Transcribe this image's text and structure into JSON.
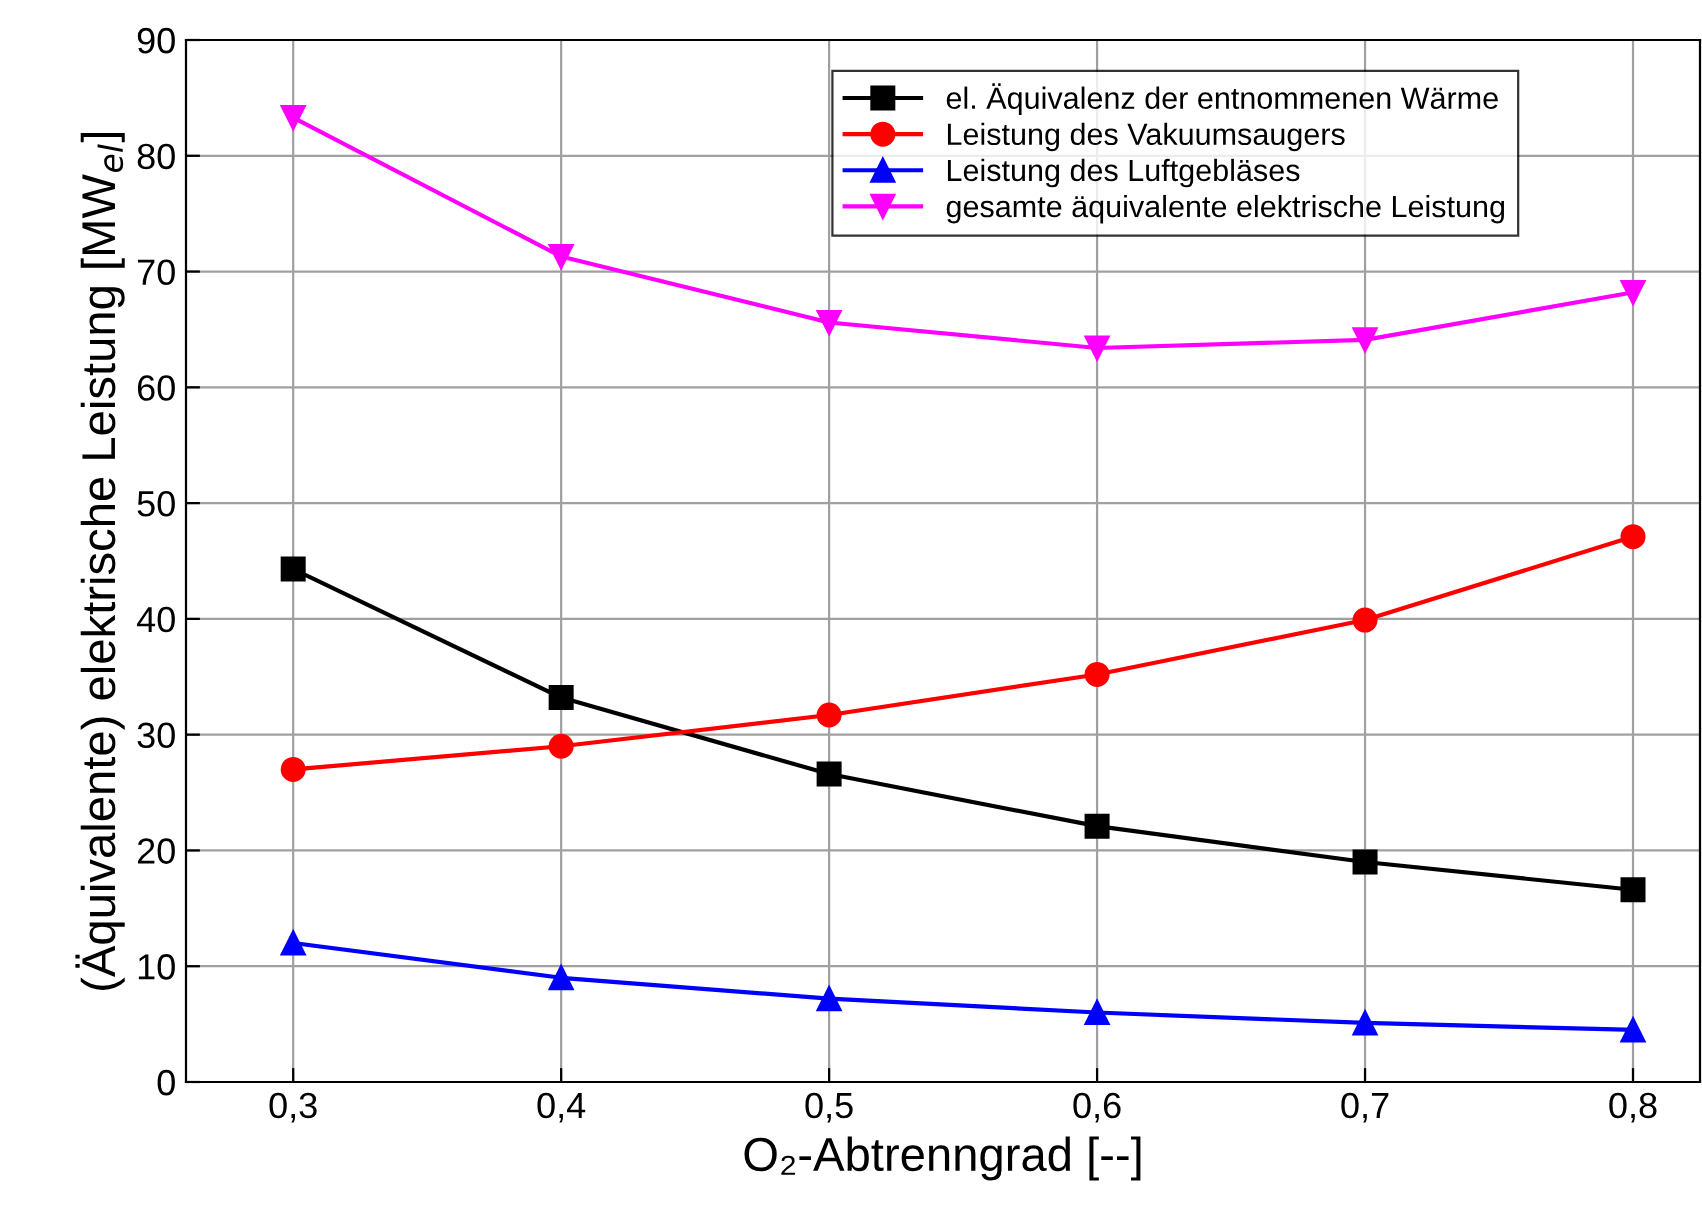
{
  "chart_data": {
    "type": "line",
    "xlabel": "O₂-Abtrenngrad [--]",
    "ylabel": "(Äquivalente) elektrische Leistung [MW$_{el}$]",
    "x": [
      0.3,
      0.4,
      0.5,
      0.6,
      0.7,
      0.8
    ],
    "series": [
      {
        "name": "el. Äquivalenz der entnommenen Wärme",
        "color": "#000000",
        "marker": "square",
        "values": [
          44.3,
          33.2,
          26.6,
          22.1,
          19.0,
          16.6
        ]
      },
      {
        "name": "Leistung des Vakuumsaugers",
        "color": "#ff0000",
        "marker": "circle",
        "values": [
          27.0,
          29.0,
          31.7,
          35.2,
          39.9,
          47.1
        ]
      },
      {
        "name": "Leistung des Luftgebläses",
        "color": "#0000ff",
        "marker": "triangle",
        "values": [
          12.0,
          9.0,
          7.2,
          6.0,
          5.1,
          4.5
        ]
      },
      {
        "name": "gesamte äquivalente elektrische Leistung",
        "color": "#ff00ff",
        "marker": "triangle_down",
        "values": [
          83.3,
          71.3,
          65.6,
          63.4,
          64.1,
          68.2
        ]
      }
    ],
    "xlim": [
      0.26,
      0.825
    ],
    "ylim": [
      0,
      90
    ],
    "xticks": [
      {
        "value": 0.3,
        "label": "0,3"
      },
      {
        "value": 0.4,
        "label": "0,4"
      },
      {
        "value": 0.5,
        "label": "0,5"
      },
      {
        "value": 0.6,
        "label": "0,6"
      },
      {
        "value": 0.7,
        "label": "0,7"
      },
      {
        "value": 0.8,
        "label": "0,8"
      }
    ],
    "yticks": [
      0,
      10,
      20,
      30,
      40,
      50,
      60,
      70,
      80,
      90
    ],
    "grid": true,
    "legend": "top right",
    "line_style": "solid"
  }
}
